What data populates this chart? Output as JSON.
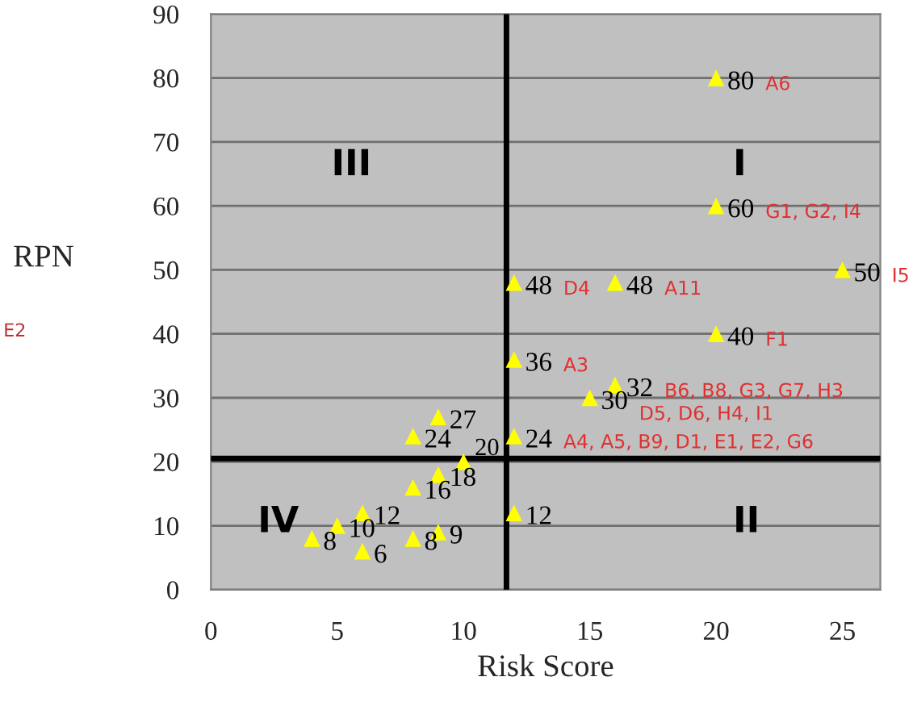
{
  "chart_data": {
    "type": "scatter",
    "xlabel": "Risk Score",
    "ylabel": "RPN",
    "x": [
      20,
      20,
      25,
      12,
      16,
      20,
      12,
      16,
      15,
      12,
      12,
      9,
      8,
      10,
      9,
      8,
      6,
      5,
      6,
      4,
      8,
      9
    ],
    "series": [
      {
        "color": "#ffff00",
        "values": [
          80,
          60,
          50,
          48,
          48,
          40,
          36,
          32,
          30,
          24,
          12,
          27,
          24,
          20,
          18,
          16,
          12,
          10,
          6,
          8,
          8,
          9
        ]
      }
    ],
    "data_labels": true,
    "marker": "triangle",
    "xlim": [
      0,
      26.5
    ],
    "xticks": [
      0,
      5,
      10,
      15,
      20,
      25
    ],
    "ylim": [
      0,
      90
    ],
    "yticks": [
      0,
      10,
      20,
      30,
      40,
      50,
      60,
      70,
      80,
      90
    ],
    "grid": "y",
    "legend": false,
    "ref_lines": [
      {
        "axis": "x",
        "value": 11.7,
        "color": "#000000"
      },
      {
        "axis": "y",
        "value": 20.5,
        "color": "#000000"
      }
    ],
    "annotations": [
      {
        "text": "A6",
        "x": 20,
        "y": 80
      },
      {
        "text": "G1, G2, I4",
        "x": 20,
        "y": 60
      },
      {
        "text": "I5",
        "x": 25,
        "y": 50
      },
      {
        "text": "D4",
        "x": 12,
        "y": 48
      },
      {
        "text": "A11",
        "x": 16,
        "y": 48
      },
      {
        "text": "F1",
        "x": 20,
        "y": 40
      },
      {
        "text": "A3",
        "x": 12,
        "y": 36
      },
      {
        "text": "B6, B8, G3, G7, H3",
        "x": 16,
        "y": 32
      },
      {
        "text": "D5, D6, H4, I1",
        "x": 15,
        "y": 30
      },
      {
        "text": "A4, A5, B9, D1, E1, E2, G6",
        "x": 12,
        "y": 24
      },
      "III",
      "I",
      "IV",
      "II",
      "E2"
    ]
  }
}
